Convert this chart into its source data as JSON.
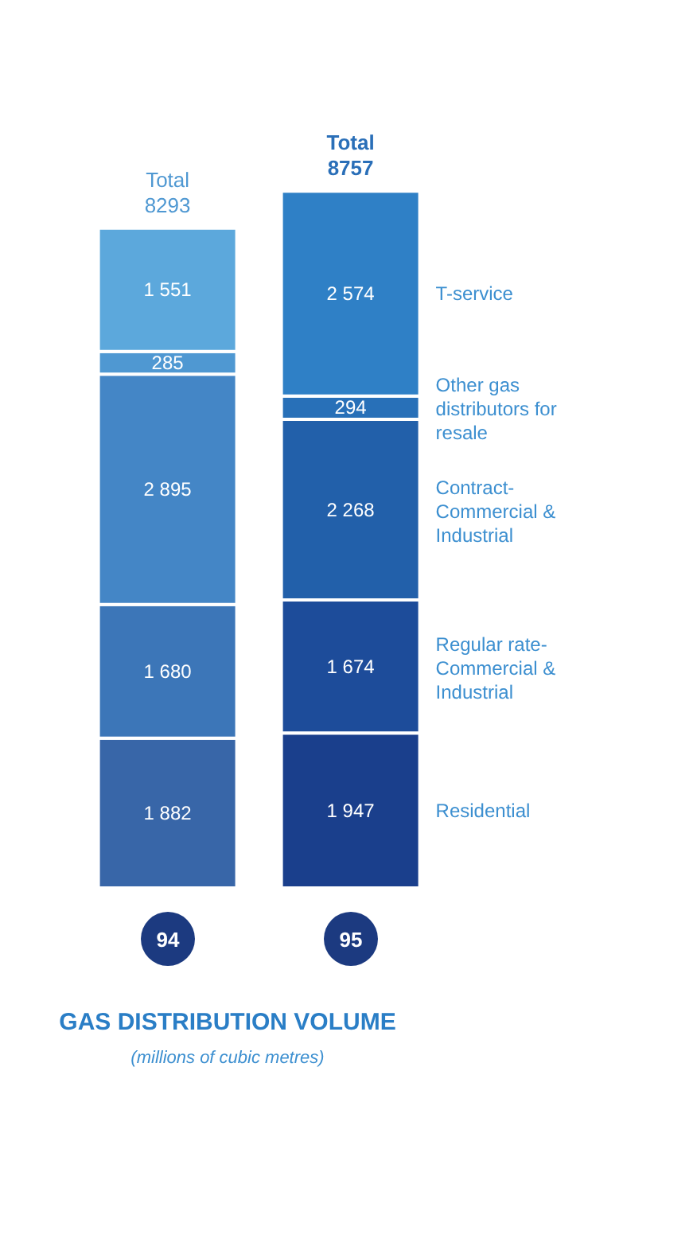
{
  "chart_data": {
    "type": "bar",
    "stacked": true,
    "title": "GAS DISTRIBUTION VOLUME",
    "subtitle": "(millions of cubic metres)",
    "categories": [
      "94",
      "95"
    ],
    "series": [
      {
        "name": "Residential",
        "colors": [
          "#3866a8",
          "#1a3f8c"
        ],
        "values": [
          1882,
          1947
        ],
        "value_labels": [
          "1 882",
          "1 947"
        ]
      },
      {
        "name": "Regular rate-Commercial & Industrial",
        "colors": [
          "#3c76b8",
          "#1d4c9a"
        ],
        "values": [
          1680,
          1674
        ],
        "value_labels": [
          "1 680",
          "1 674"
        ]
      },
      {
        "name": "Contract-Commercial & Industrial",
        "colors": [
          "#4486c6",
          "#2260aa"
        ],
        "values": [
          2895,
          2268
        ],
        "value_labels": [
          "2 895",
          "2 268"
        ]
      },
      {
        "name": "Other gas distributors for resale",
        "colors": [
          "#4f98d2",
          "#2870b8"
        ],
        "values": [
          285,
          294
        ],
        "value_labels": [
          "285",
          "294"
        ]
      },
      {
        "name": "T-service",
        "colors": [
          "#5ca8dc",
          "#2f80c6"
        ],
        "values": [
          1551,
          2574
        ],
        "value_labels": [
          "1 551",
          "2 574"
        ]
      }
    ],
    "totals": [
      "Total 8293",
      "Total 8757"
    ]
  }
}
